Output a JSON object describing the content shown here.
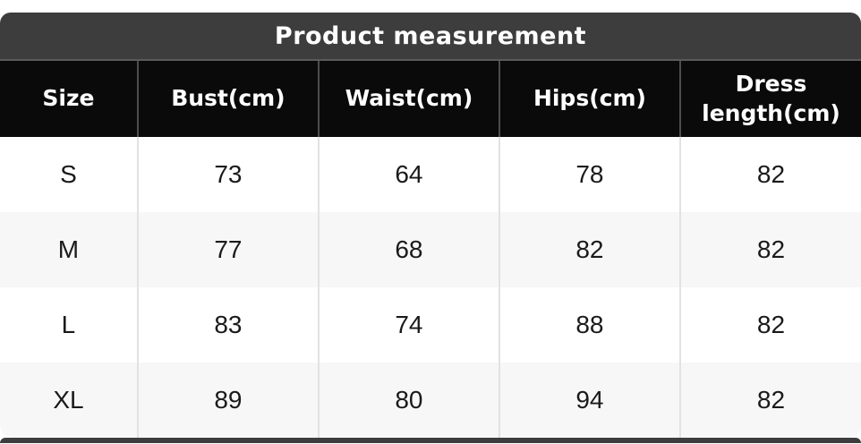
{
  "chart_data": {
    "type": "table",
    "title": "Product measurement",
    "columns": [
      "Size",
      "Bust(cm)",
      "Waist(cm)",
      "Hips(cm)",
      "Dress length(cm)"
    ],
    "rows": [
      [
        "S",
        "73",
        "64",
        "78",
        "82"
      ],
      [
        "M",
        "77",
        "68",
        "82",
        "82"
      ],
      [
        "L",
        "83",
        "74",
        "88",
        "82"
      ],
      [
        "XL",
        "89",
        "80",
        "94",
        "82"
      ]
    ]
  },
  "colors": {
    "title_bar_bg": "#3d3d3d",
    "header_bg": "#0a0a0a",
    "row_bg": "#ffffff",
    "row_alt_bg": "#f7f7f7",
    "header_separator": "#4d4d4d",
    "body_separator": "#e2e2e2",
    "title_text": "#ffffff",
    "cell_text": "#1a1a1a"
  }
}
